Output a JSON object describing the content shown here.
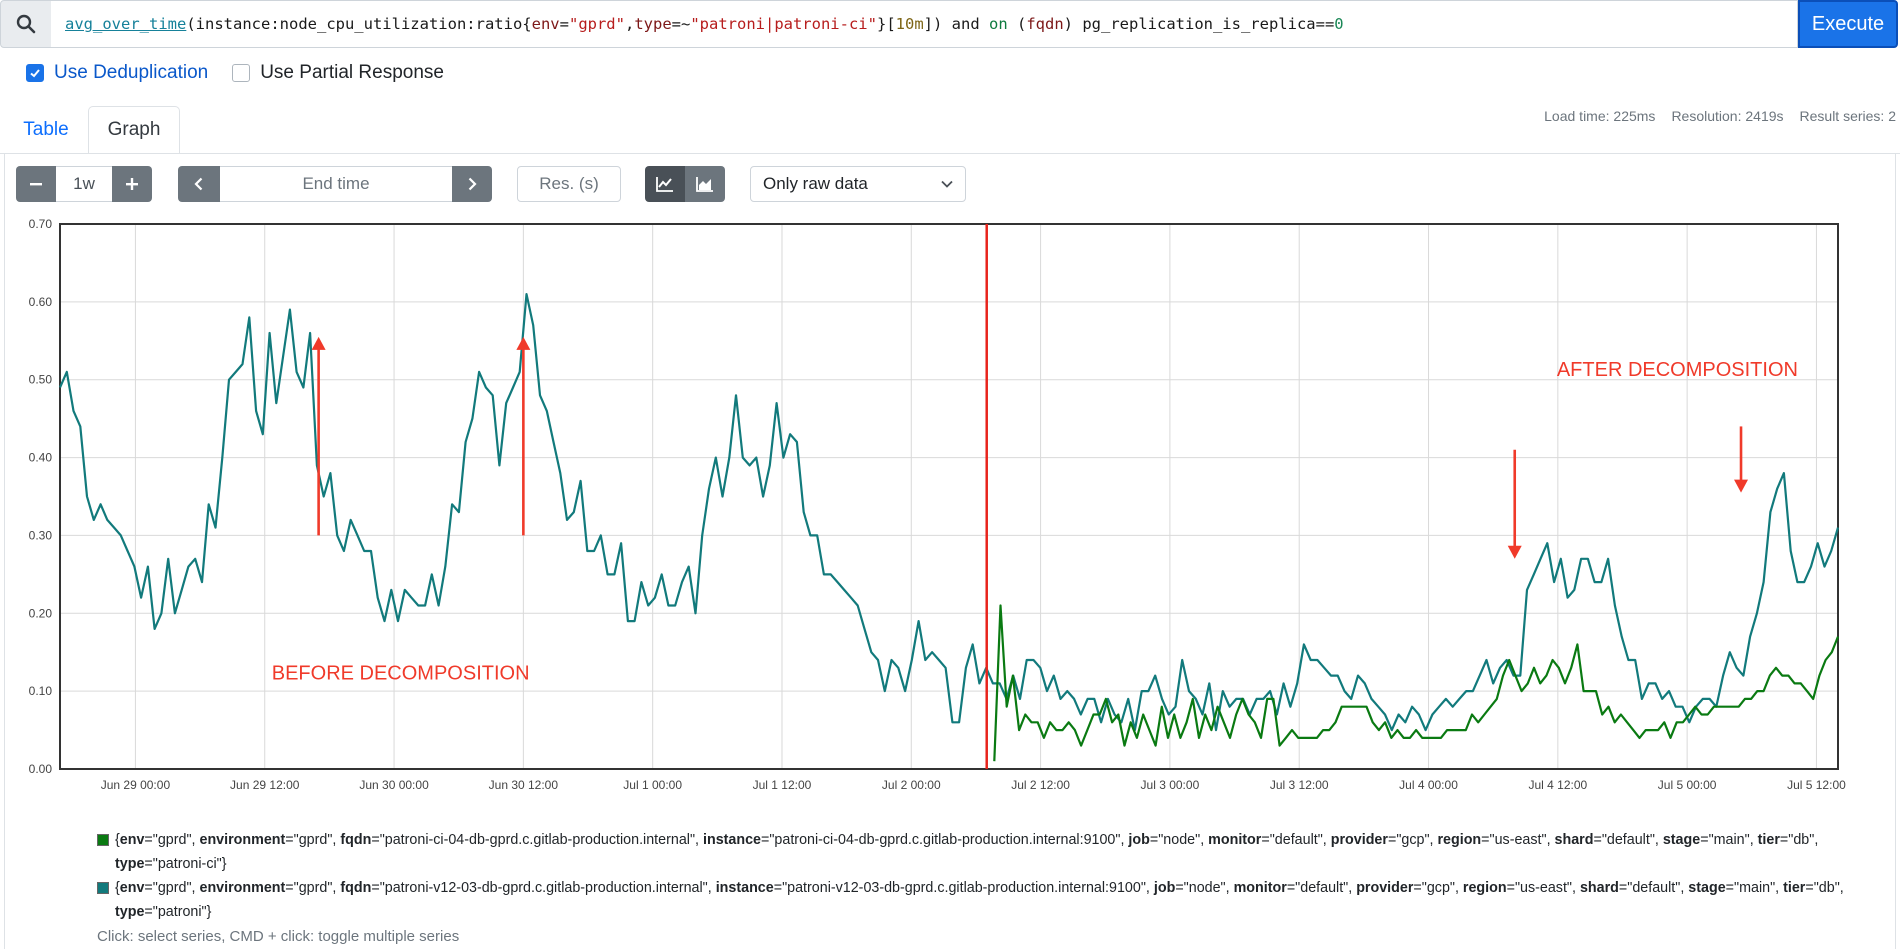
{
  "query": {
    "parts": [
      {
        "t": "avg_over_time",
        "c": "tok-fn"
      },
      {
        "t": "(",
        "c": "tok-op"
      },
      {
        "t": "instance:node_cpu_utilization:ratio",
        "c": "tok-metric"
      },
      {
        "t": "{",
        "c": "tok-op"
      },
      {
        "t": "env",
        "c": "tok-label"
      },
      {
        "t": "=",
        "c": "tok-op"
      },
      {
        "t": "\"gprd\"",
        "c": "tok-str"
      },
      {
        "t": ",",
        "c": "tok-op"
      },
      {
        "t": "type",
        "c": "tok-label"
      },
      {
        "t": "=~",
        "c": "tok-op"
      },
      {
        "t": "\"patroni|patroni-ci\"",
        "c": "tok-str"
      },
      {
        "t": "}",
        "c": "tok-op"
      },
      {
        "t": "[",
        "c": "tok-op"
      },
      {
        "t": "10m",
        "c": "tok-dur"
      },
      {
        "t": "]) ",
        "c": "tok-op"
      },
      {
        "t": "and",
        "c": "tok-kw"
      },
      {
        "t": " ",
        "c": "tok-op"
      },
      {
        "t": "on",
        "c": "tok-kw2"
      },
      {
        "t": " (",
        "c": "tok-op"
      },
      {
        "t": "fqdn",
        "c": "tok-label"
      },
      {
        "t": ") pg_replication_is_replica==",
        "c": "tok-metric"
      },
      {
        "t": "0",
        "c": "tok-num"
      }
    ]
  },
  "execute_label": "Execute",
  "options": {
    "dedup_label": "Use Deduplication",
    "dedup_checked": true,
    "partial_label": "Use Partial Response",
    "partial_checked": false
  },
  "tabs": {
    "table": "Table",
    "graph": "Graph"
  },
  "stats": {
    "load_time": "Load time: 225ms",
    "resolution": "Resolution: 2419s",
    "result_series": "Result series: 2"
  },
  "controls": {
    "range_value": "1w",
    "end_time_placeholder": "End time",
    "res_placeholder": "Res. (s)",
    "downsampling_selected": "Only raw data"
  },
  "colors": {
    "series_ci": "#0a7a12",
    "series_v12": "#127a7c",
    "annotation": "#f03a2a",
    "primary": "#1a73e8"
  },
  "annotations": {
    "before": "BEFORE DECOMPOSITION",
    "after": "AFTER DECOMPOSITION"
  },
  "chart_data": {
    "type": "line",
    "x_start": "Jun 28 17:00",
    "x_end": "Jul 5 14:00",
    "x_tick_labels": [
      "Jun 29 00:00",
      "Jun 29 12:00",
      "Jun 30 00:00",
      "Jun 30 12:00",
      "Jul 1 00:00",
      "Jul 1 12:00",
      "Jul 2 00:00",
      "Jul 2 12:00",
      "Jul 3 00:00",
      "Jul 3 12:00",
      "Jul 4 00:00",
      "Jul 4 12:00",
      "Jul 5 00:00",
      "Jul 5 12:00"
    ],
    "y_tick_labels": [
      "0.00",
      "0.10",
      "0.20",
      "0.30",
      "0.40",
      "0.50",
      "0.60",
      "0.70"
    ],
    "ylim": [
      0,
      0.7
    ],
    "grid": true,
    "event_line_time": "Jul 2 07:00",
    "series": [
      {
        "values": [
          0.49,
          0.51,
          0.46,
          0.44,
          0.35,
          0.32,
          0.34,
          0.32,
          0.31,
          0.3,
          0.28,
          0.26,
          0.22,
          0.26,
          0.18,
          0.2,
          0.27,
          0.2,
          0.23,
          0.26,
          0.27,
          0.24,
          0.34,
          0.31,
          0.4,
          0.5,
          0.51,
          0.52,
          0.58,
          0.46,
          0.43,
          0.56,
          0.47,
          0.53,
          0.59,
          0.51,
          0.49,
          0.56,
          0.39,
          0.35,
          0.38,
          0.3,
          0.28,
          0.32,
          0.3,
          0.28,
          0.28,
          0.22,
          0.19,
          0.23,
          0.19,
          0.23,
          0.22,
          0.21,
          0.21,
          0.25,
          0.21,
          0.26,
          0.34,
          0.33,
          0.42,
          0.45,
          0.51,
          0.49,
          0.48,
          0.39,
          0.47,
          0.49,
          0.51,
          0.61,
          0.57,
          0.48,
          0.46,
          0.42,
          0.38,
          0.32,
          0.33,
          0.37,
          0.28,
          0.28,
          0.3,
          0.25,
          0.25,
          0.29,
          0.19,
          0.19,
          0.24,
          0.21,
          0.22,
          0.25,
          0.21,
          0.21,
          0.24,
          0.26,
          0.2,
          0.3,
          0.36,
          0.4,
          0.35,
          0.4,
          0.48,
          0.4,
          0.39,
          0.4,
          0.35,
          0.39,
          0.47,
          0.4,
          0.43,
          0.42,
          0.33,
          0.3,
          0.3,
          0.25,
          0.25,
          0.24,
          0.23,
          0.22,
          0.21,
          0.18,
          0.15,
          0.14,
          0.1,
          0.14,
          0.13,
          0.1,
          0.14,
          0.19,
          0.14,
          0.15,
          0.14,
          0.13,
          0.06,
          0.06,
          0.13,
          0.16,
          0.11,
          0.13,
          0.11,
          0.11,
          0.09,
          0.12,
          0.09,
          0.14,
          0.14,
          0.13,
          0.1,
          0.12,
          0.09,
          0.1,
          0.09,
          0.07,
          0.09,
          0.09,
          0.06,
          0.09,
          0.07,
          0.06,
          0.09,
          0.05,
          0.1,
          0.1,
          0.12,
          0.09,
          0.07,
          0.08,
          0.14,
          0.1,
          0.09,
          0.07,
          0.11,
          0.05,
          0.1,
          0.08,
          0.09,
          0.09,
          0.07,
          0.09,
          0.09,
          0.1,
          0.07,
          0.11,
          0.08,
          0.11,
          0.16,
          0.14,
          0.14,
          0.13,
          0.12,
          0.12,
          0.1,
          0.09,
          0.12,
          0.11,
          0.09,
          0.08,
          0.07,
          0.05,
          0.07,
          0.06,
          0.08,
          0.07,
          0.05,
          0.07,
          0.08,
          0.09,
          0.08,
          0.09,
          0.1,
          0.1,
          0.12,
          0.14,
          0.11,
          0.13,
          0.14,
          0.12,
          0.12,
          0.23,
          0.25,
          0.27,
          0.29,
          0.24,
          0.27,
          0.22,
          0.23,
          0.27,
          0.27,
          0.24,
          0.24,
          0.27,
          0.21,
          0.17,
          0.14,
          0.14,
          0.09,
          0.11,
          0.11,
          0.09,
          0.1,
          0.08,
          0.08,
          0.06,
          0.08,
          0.09,
          0.09,
          0.08,
          0.12,
          0.15,
          0.13,
          0.12,
          0.17,
          0.2,
          0.24,
          0.33,
          0.36,
          0.38,
          0.28,
          0.24,
          0.24,
          0.26,
          0.29,
          0.26,
          0.28,
          0.31
        ]
      },
      {
        "values": [
          0.01,
          0.21,
          0.08,
          0.12,
          0.05,
          0.07,
          0.06,
          0.06,
          0.04,
          0.06,
          0.05,
          0.05,
          0.06,
          0.05,
          0.03,
          0.05,
          0.07,
          0.07,
          0.09,
          0.06,
          0.07,
          0.03,
          0.06,
          0.04,
          0.07,
          0.05,
          0.03,
          0.08,
          0.04,
          0.07,
          0.04,
          0.06,
          0.09,
          0.04,
          0.07,
          0.05,
          0.08,
          0.06,
          0.04,
          0.07,
          0.09,
          0.07,
          0.06,
          0.04,
          0.09,
          0.09,
          0.03,
          0.04,
          0.05,
          0.04,
          0.04,
          0.04,
          0.04,
          0.05,
          0.05,
          0.06,
          0.08,
          0.08,
          0.08,
          0.08,
          0.08,
          0.06,
          0.05,
          0.06,
          0.04,
          0.05,
          0.04,
          0.04,
          0.05,
          0.04,
          0.04,
          0.04,
          0.04,
          0.05,
          0.05,
          0.05,
          0.05,
          0.07,
          0.06,
          0.07,
          0.08,
          0.09,
          0.12,
          0.14,
          0.12,
          0.1,
          0.11,
          0.13,
          0.11,
          0.12,
          0.14,
          0.13,
          0.11,
          0.13,
          0.16,
          0.1,
          0.1,
          0.1,
          0.07,
          0.08,
          0.06,
          0.07,
          0.06,
          0.05,
          0.04,
          0.05,
          0.05,
          0.05,
          0.06,
          0.04,
          0.06,
          0.06,
          0.07,
          0.08,
          0.07,
          0.07,
          0.08,
          0.08,
          0.08,
          0.08,
          0.08,
          0.09,
          0.09,
          0.1,
          0.1,
          0.12,
          0.13,
          0.12,
          0.12,
          0.11,
          0.11,
          0.1,
          0.09,
          0.12,
          0.14,
          0.15,
          0.17
        ]
      }
    ]
  },
  "legend": [
    {
      "swatch": "#0a7a12",
      "pairs": [
        {
          "k": "env",
          "v": "\"gprd\""
        },
        {
          "k": "environment",
          "v": "\"gprd\""
        },
        {
          "k": "fqdn",
          "v": "\"patroni-ci-04-db-gprd.c.gitlab-production.internal\""
        },
        {
          "k": "instance",
          "v": "\"patroni-ci-04-db-gprd.c.gitlab-production.internal:9100\""
        },
        {
          "k": "job",
          "v": "\"node\""
        },
        {
          "k": "monitor",
          "v": "\"default\""
        },
        {
          "k": "provider",
          "v": "\"gcp\""
        },
        {
          "k": "region",
          "v": "\"us-east\""
        },
        {
          "k": "shard",
          "v": "\"default\""
        },
        {
          "k": "stage",
          "v": "\"main\""
        },
        {
          "k": "tier",
          "v": "\"db\""
        },
        {
          "k": "type",
          "v": "\"patroni-ci\""
        }
      ]
    },
    {
      "swatch": "#127a7c",
      "pairs": [
        {
          "k": "env",
          "v": "\"gprd\""
        },
        {
          "k": "environment",
          "v": "\"gprd\""
        },
        {
          "k": "fqdn",
          "v": "\"patroni-v12-03-db-gprd.c.gitlab-production.internal\""
        },
        {
          "k": "instance",
          "v": "\"patroni-v12-03-db-gprd.c.gitlab-production.internal:9100\""
        },
        {
          "k": "job",
          "v": "\"node\""
        },
        {
          "k": "monitor",
          "v": "\"default\""
        },
        {
          "k": "provider",
          "v": "\"gcp\""
        },
        {
          "k": "region",
          "v": "\"us-east\""
        },
        {
          "k": "shard",
          "v": "\"default\""
        },
        {
          "k": "stage",
          "v": "\"main\""
        },
        {
          "k": "tier",
          "v": "\"db\""
        },
        {
          "k": "type",
          "v": "\"patroni\""
        }
      ]
    }
  ],
  "hint": "Click: select series, CMD + click: toggle multiple series"
}
